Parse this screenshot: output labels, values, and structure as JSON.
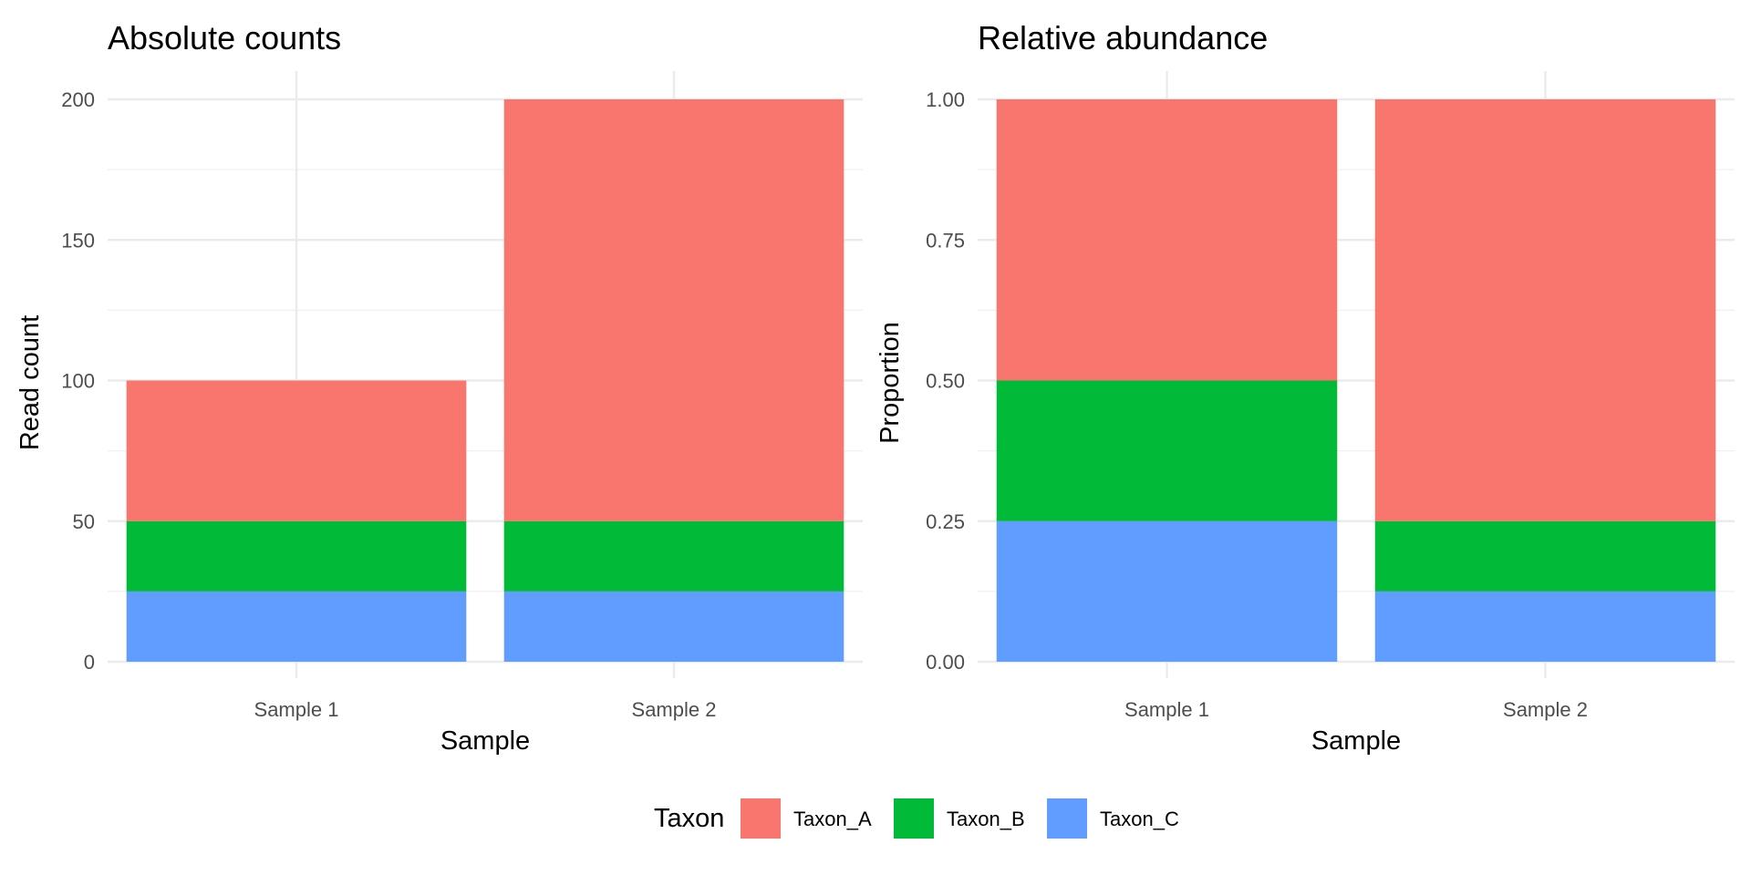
{
  "chart_data": [
    {
      "type": "bar",
      "stacked": true,
      "title": "Absolute counts",
      "xlabel": "Sample",
      "ylabel": "Read count",
      "categories": [
        "Sample 1",
        "Sample 2"
      ],
      "series": [
        {
          "name": "Taxon_A",
          "values": [
            50,
            150
          ]
        },
        {
          "name": "Taxon_B",
          "values": [
            25,
            25
          ]
        },
        {
          "name": "Taxon_C",
          "values": [
            25,
            25
          ]
        }
      ],
      "ylim": [
        0,
        200
      ],
      "yticks": [
        0,
        50,
        100,
        150,
        200
      ],
      "ytick_labels": [
        "0",
        "50",
        "100",
        "150",
        "200"
      ],
      "grid": true
    },
    {
      "type": "bar",
      "stacked": true,
      "title": "Relative abundance",
      "xlabel": "Sample",
      "ylabel": "Proportion",
      "categories": [
        "Sample 1",
        "Sample 2"
      ],
      "series": [
        {
          "name": "Taxon_A",
          "values": [
            0.5,
            0.75
          ]
        },
        {
          "name": "Taxon_B",
          "values": [
            0.25,
            0.125
          ]
        },
        {
          "name": "Taxon_C",
          "values": [
            0.25,
            0.125
          ]
        }
      ],
      "ylim": [
        0,
        1
      ],
      "yticks": [
        0,
        0.25,
        0.5,
        0.75,
        1
      ],
      "ytick_labels": [
        "0.00",
        "0.25",
        "0.50",
        "0.75",
        "1.00"
      ],
      "grid": true
    }
  ],
  "legend": {
    "title": "Taxon",
    "position": "bottom",
    "items": [
      {
        "name": "Taxon_A",
        "color": "#F8766D"
      },
      {
        "name": "Taxon_B",
        "color": "#00BA38"
      },
      {
        "name": "Taxon_C",
        "color": "#619CFF"
      }
    ]
  }
}
